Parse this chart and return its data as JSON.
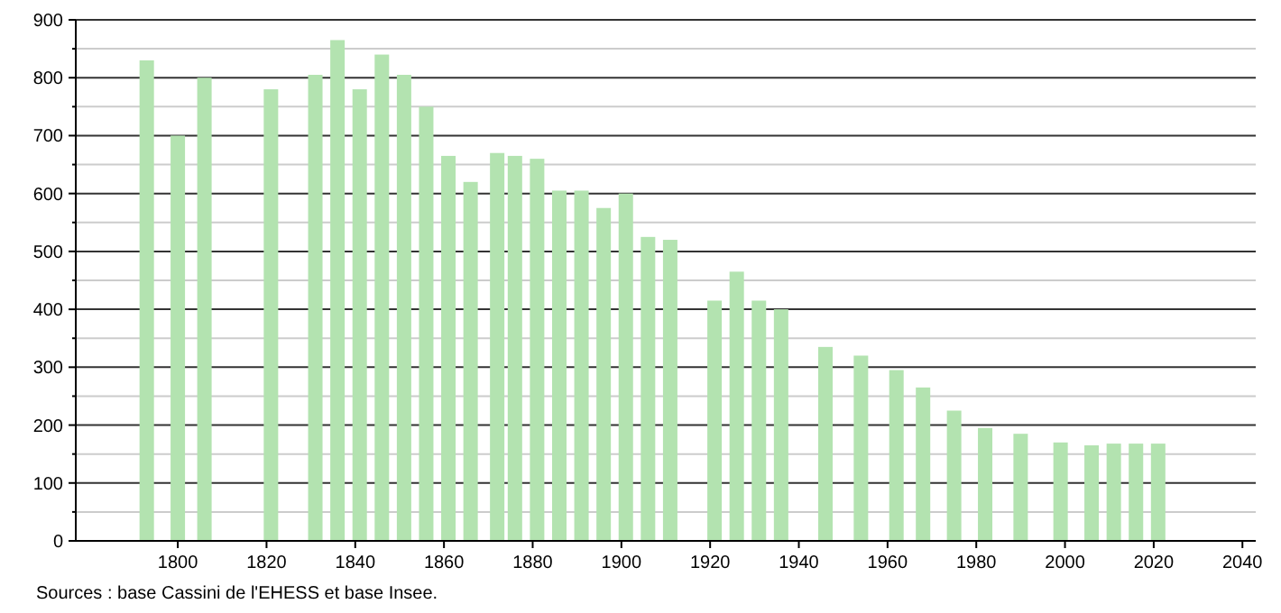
{
  "chart_data": {
    "type": "bar",
    "x": [
      1793,
      1800,
      1806,
      1821,
      1831,
      1836,
      1841,
      1846,
      1851,
      1856,
      1861,
      1866,
      1872,
      1876,
      1881,
      1886,
      1891,
      1896,
      1901,
      1906,
      1911,
      1921,
      1926,
      1931,
      1936,
      1946,
      1954,
      1962,
      1968,
      1975,
      1982,
      1990,
      1999,
      2006,
      2011,
      2016,
      2021
    ],
    "values": [
      830,
      700,
      800,
      780,
      805,
      865,
      780,
      840,
      805,
      750,
      665,
      620,
      670,
      665,
      660,
      605,
      605,
      575,
      600,
      525,
      520,
      415,
      465,
      415,
      400,
      335,
      320,
      295,
      265,
      225,
      195,
      185,
      170,
      165,
      168,
      168,
      168
    ],
    "color": "#b3e3b0",
    "xlim": [
      1777,
      2043
    ],
    "xticks": [
      1800,
      1820,
      1840,
      1860,
      1880,
      1900,
      1920,
      1940,
      1960,
      1980,
      2000,
      2020,
      2040
    ],
    "ylim": [
      0,
      900
    ],
    "yticks": [
      0,
      {
        "value": 50,
        "label": null
      },
      100,
      {
        "value": 150,
        "label": null
      },
      200,
      {
        "value": 250,
        "label": null
      },
      300,
      {
        "value": 350,
        "label": null
      },
      400,
      {
        "value": 450,
        "label": null
      },
      500,
      {
        "value": 550,
        "label": null
      },
      600,
      {
        "value": 650,
        "label": null
      },
      700,
      {
        "value": 750,
        "label": null
      },
      800,
      {
        "value": 850,
        "label": null
      },
      900
    ],
    "grid": "y",
    "annotations": [
      "Sources : base Cassini de l'EHESS et base Insee."
    ]
  }
}
